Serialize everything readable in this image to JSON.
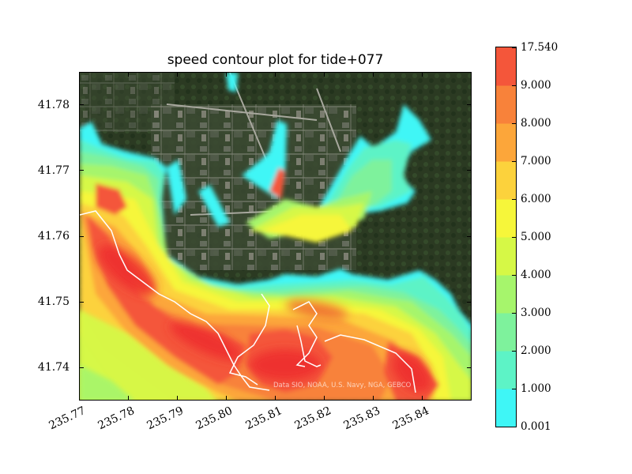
{
  "chart_data": {
    "type": "heatmap",
    "title": "speed contour plot for tide+077",
    "x_ticks": [
      "235.77",
      "235.78",
      "235.79",
      "235.80",
      "235.81",
      "235.82",
      "235.83",
      "235.84"
    ],
    "x_tick_values": [
      235.77,
      235.78,
      235.79,
      235.8,
      235.81,
      235.82,
      235.83,
      235.84
    ],
    "y_ticks": [
      "41.74",
      "41.75",
      "41.76",
      "41.77",
      "41.78"
    ],
    "y_tick_values": [
      41.74,
      41.75,
      41.76,
      41.77,
      41.78
    ],
    "xlim": [
      235.77,
      235.85
    ],
    "ylim": [
      41.735,
      41.785
    ],
    "colorbar": {
      "labels": [
        "0.001",
        "1.000",
        "2.000",
        "3.000",
        "4.000",
        "5.000",
        "6.000",
        "7.000",
        "8.000",
        "9.000",
        "17.540"
      ],
      "levels": [
        0.001,
        1,
        2,
        3,
        4,
        5,
        6,
        7,
        8,
        9,
        17.54
      ],
      "colors": [
        "#3ff6f6",
        "#5df3c6",
        "#7ef29c",
        "#a6f56c",
        "#d6f846",
        "#f6f63a",
        "#fcd23c",
        "#fca63a",
        "#f8823a",
        "#f4563a"
      ]
    },
    "background": "satellite imagery",
    "attribution": "Data SIO, NOAA, U.S. Navy, NGA, GEBCO"
  }
}
